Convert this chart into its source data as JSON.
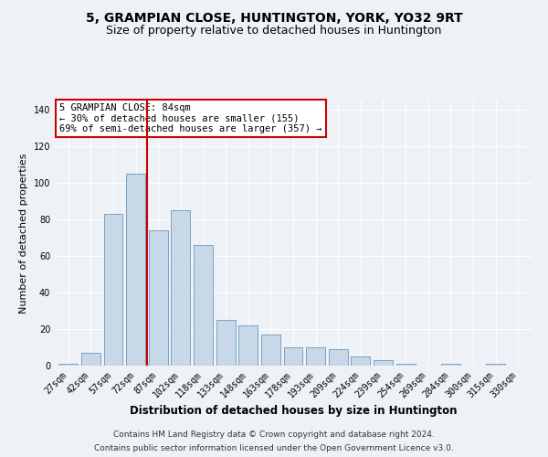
{
  "title": "5, GRAMPIAN CLOSE, HUNTINGTON, YORK, YO32 9RT",
  "subtitle": "Size of property relative to detached houses in Huntington",
  "xlabel": "Distribution of detached houses by size in Huntington",
  "ylabel": "Number of detached properties",
  "categories": [
    "27sqm",
    "42sqm",
    "57sqm",
    "72sqm",
    "87sqm",
    "102sqm",
    "118sqm",
    "133sqm",
    "148sqm",
    "163sqm",
    "178sqm",
    "193sqm",
    "209sqm",
    "224sqm",
    "239sqm",
    "254sqm",
    "269sqm",
    "284sqm",
    "300sqm",
    "315sqm",
    "330sqm"
  ],
  "values": [
    1,
    7,
    83,
    105,
    74,
    85,
    66,
    25,
    22,
    17,
    10,
    10,
    9,
    5,
    3,
    1,
    0,
    1,
    0,
    1,
    0
  ],
  "bar_color": "#c8d8e8",
  "bar_edge_color": "#6699bb",
  "vline_color": "#cc0000",
  "vline_pos": 3.5,
  "annotation_line1": "5 GRAMPIAN CLOSE: 84sqm",
  "annotation_line2": "← 30% of detached houses are smaller (155)",
  "annotation_line3": "69% of semi-detached houses are larger (357) →",
  "annotation_box_color": "#ffffff",
  "annotation_box_edge_color": "#cc0000",
  "ylim": [
    0,
    145
  ],
  "yticks": [
    0,
    20,
    40,
    60,
    80,
    100,
    120,
    140
  ],
  "background_color": "#eef2f7",
  "plot_background_color": "#eef2f7",
  "footer_line1": "Contains HM Land Registry data © Crown copyright and database right 2024.",
  "footer_line2": "Contains public sector information licensed under the Open Government Licence v3.0.",
  "title_fontsize": 10,
  "subtitle_fontsize": 9,
  "xlabel_fontsize": 8.5,
  "ylabel_fontsize": 8,
  "tick_fontsize": 7,
  "annotation_fontsize": 7.5,
  "footer_fontsize": 6.5
}
